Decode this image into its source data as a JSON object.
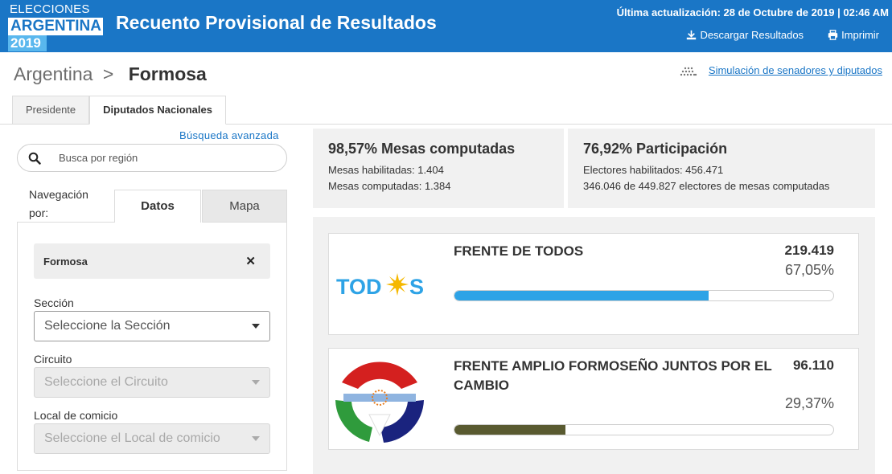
{
  "header": {
    "logo": {
      "line1": "ELECCIONES",
      "line2": "ARGENTINA",
      "line3": "2019"
    },
    "title": "Recuento Provisional de Resultados",
    "updated": "Última actualización: 28 de Octubre de 2019 | 02:46 AM",
    "download_label": "Descargar Resultados",
    "print_label": "Imprimir"
  },
  "breadcrumb": {
    "root": "Argentina",
    "separator": ">",
    "current": "Formosa"
  },
  "simulation_link": "Simulación de senadores y diputados",
  "tabs": [
    {
      "label": "Presidente"
    },
    {
      "label": "Diputados Nacionales",
      "active": true
    }
  ],
  "sidebar": {
    "advanced_search": "Búsqueda avanzada",
    "search_placeholder": "Busca por región",
    "nav_label": "Navegación por:",
    "nav_tabs": [
      {
        "label": "Datos",
        "active": true
      },
      {
        "label": "Mapa"
      }
    ],
    "selected_region": "Formosa",
    "fields": [
      {
        "label": "Sección",
        "value": "Seleccione la Sección",
        "disabled": false
      },
      {
        "label": "Circuito",
        "value": "Seleccione el Circuito",
        "disabled": true
      },
      {
        "label": "Local de comicio",
        "value": "Seleccione el Local de comicio",
        "disabled": true
      }
    ]
  },
  "stats": {
    "mesas": {
      "headline": "98,57% Mesas computadas",
      "line1": "Mesas habilitadas: 1.404",
      "line2": "Mesas computadas: 1.384"
    },
    "participacion": {
      "headline": "76,92% Participación",
      "line1": "Electores habilitados: 456.471",
      "line2": "346.046 de 449.827 electores de mesas computadas"
    }
  },
  "results": [
    {
      "party": "FRENTE DE TODOS",
      "logo_text": "TODOS",
      "votes": "219.419",
      "percent_label": "67,05%",
      "percent": 67.05,
      "color": "#2ea3e6"
    },
    {
      "party": "FRENTE AMPLIO FORMOSEÑO JUNTOS POR EL CAMBIO",
      "votes": "96.110",
      "percent_label": "29,37%",
      "percent": 29.37,
      "color": "#595a30"
    }
  ],
  "colors": {
    "header_bg": "#1a76c6",
    "accent": "#1a76c6"
  }
}
